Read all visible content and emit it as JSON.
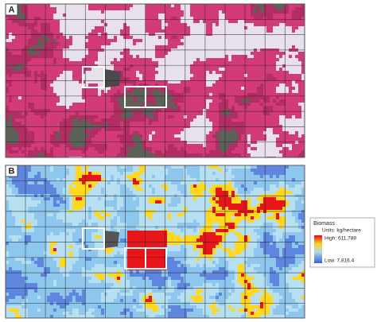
{
  "panels": [
    {
      "label": "A"
    },
    {
      "label": "B"
    }
  ],
  "legend": {
    "title": "Biomass",
    "units": "Units: kg/hectare",
    "high": "High: 611,789",
    "low": "Low: 7,816.4"
  }
}
